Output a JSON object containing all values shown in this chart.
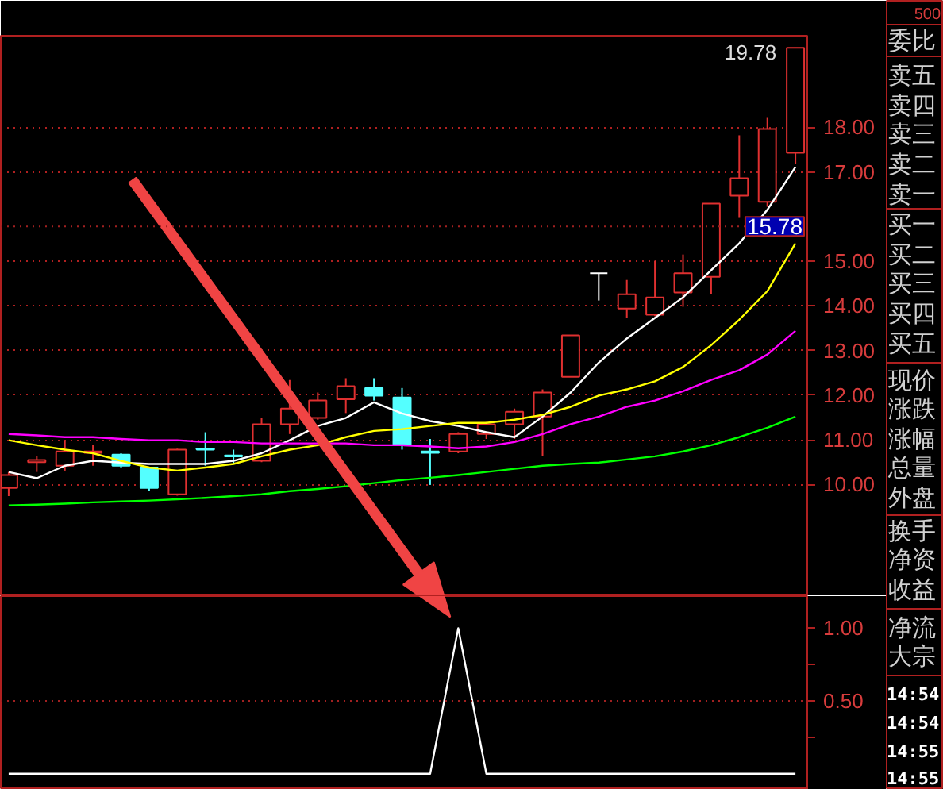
{
  "chart_data": [
    {
      "type": "candlestick",
      "categories": [
        null,
        null,
        null,
        null,
        null,
        null,
        null,
        null,
        null,
        null,
        null,
        null,
        null,
        null,
        null,
        null,
        null,
        null,
        null,
        null,
        null,
        null,
        null,
        null,
        null,
        null,
        null,
        null,
        null
      ],
      "ohlc": [
        [
          9.92,
          10.28,
          9.74,
          10.21
        ],
        [
          10.5,
          10.63,
          10.28,
          10.55
        ],
        [
          10.42,
          10.99,
          10.31,
          10.74
        ],
        [
          10.71,
          10.88,
          10.42,
          10.74
        ],
        [
          10.67,
          10.7,
          10.38,
          10.42
        ],
        [
          10.38,
          10.4,
          9.85,
          9.92
        ],
        [
          9.78,
          10.8,
          9.75,
          10.78
        ],
        [
          10.8,
          11.17,
          10.42,
          10.78
        ],
        [
          10.65,
          10.78,
          10.46,
          10.63
        ],
        [
          10.53,
          11.49,
          10.5,
          11.35
        ],
        [
          11.35,
          12.34,
          11.13,
          11.7
        ],
        [
          11.49,
          12.06,
          11.45,
          11.88
        ],
        [
          11.91,
          12.38,
          11.6,
          12.2
        ],
        [
          12.16,
          12.38,
          11.88,
          11.99
        ],
        [
          11.95,
          12.16,
          10.78,
          10.88
        ],
        [
          10.74,
          11.02,
          9.99,
          10.71
        ],
        [
          10.74,
          11.17,
          10.7,
          11.13
        ],
        [
          11.13,
          11.4,
          11.02,
          11.35
        ],
        [
          11.35,
          11.7,
          11.02,
          11.63
        ],
        [
          11.52,
          12.13,
          10.63,
          12.06
        ],
        [
          12.41,
          13.34,
          12.41,
          13.34
        ],
        [
          14.73,
          14.73,
          14.12,
          14.73
        ],
        [
          13.94,
          14.58,
          13.73,
          14.26
        ],
        [
          13.8,
          15.01,
          13.77,
          14.19
        ],
        [
          14.3,
          15.15,
          13.98,
          14.73
        ],
        [
          14.65,
          16.29,
          14.26,
          16.29
        ],
        [
          16.47,
          17.82,
          15.97,
          16.86
        ],
        [
          16.33,
          18.21,
          16.22,
          17.96
        ],
        [
          17.43,
          19.78,
          17.18,
          19.78
        ]
      ],
      "colors": [
        "#e03030",
        "#e03030",
        "#e03030",
        "#e03030",
        "#54ffff",
        "#54ffff",
        "#e03030",
        "#54ffff",
        "#54ffff",
        "#e03030",
        "#e03030",
        "#e03030",
        "#e03030",
        "#54ffff",
        "#54ffff",
        "#54ffff",
        "#e03030",
        "#e03030",
        "#e03030",
        "#e03030",
        "#e03030",
        "#ffffff",
        "#e03030",
        "#e03030",
        "#e03030",
        "#e03030",
        "#e03030",
        "#e03030",
        "#e03030"
      ],
      "series": [
        {
          "type": "line",
          "color": "#ffffff",
          "values": [
            10.28,
            10.14,
            10.42,
            10.53,
            10.49,
            10.46,
            10.46,
            10.46,
            10.53,
            10.7,
            10.99,
            11.31,
            11.49,
            11.84,
            11.59,
            11.42,
            11.31,
            11.17,
            11.06,
            11.52,
            12.06,
            12.73,
            13.27,
            13.73,
            14.19,
            14.8,
            15.4,
            16.15,
            17.11
          ]
        },
        {
          "type": "line",
          "color": "#ffff00",
          "values": [
            10.99,
            10.88,
            10.78,
            10.7,
            10.53,
            10.38,
            10.31,
            10.38,
            10.46,
            10.63,
            10.78,
            10.88,
            11.06,
            11.2,
            11.24,
            11.31,
            11.38,
            11.38,
            11.45,
            11.56,
            11.74,
            11.99,
            12.13,
            12.31,
            12.63,
            13.12,
            13.69,
            14.33,
            15.4
          ]
        },
        {
          "type": "line",
          "color": "#ff00ff",
          "values": [
            11.13,
            11.1,
            11.06,
            11.06,
            11.02,
            10.99,
            10.99,
            10.95,
            10.95,
            10.92,
            10.92,
            10.92,
            10.92,
            10.88,
            10.88,
            10.85,
            10.81,
            10.85,
            10.95,
            11.13,
            11.35,
            11.52,
            11.74,
            11.88,
            12.09,
            12.34,
            12.56,
            12.91,
            13.44
          ]
        },
        {
          "type": "line",
          "color": "#00ff00",
          "values": [
            9.53,
            9.55,
            9.57,
            9.6,
            9.62,
            9.64,
            9.67,
            9.7,
            9.74,
            9.78,
            9.85,
            9.9,
            9.96,
            10.03,
            10.1,
            10.15,
            10.21,
            10.28,
            10.35,
            10.42,
            10.46,
            10.49,
            10.56,
            10.63,
            10.74,
            10.88,
            11.06,
            11.27,
            11.52
          ]
        }
      ],
      "ylim": [
        7.5,
        20.05
      ],
      "yticks": [
        {
          "value": 10,
          "label": "10.00"
        },
        {
          "value": 11,
          "label": "11.00"
        },
        {
          "value": 12,
          "label": "12.00"
        },
        {
          "value": 13,
          "label": "13.00"
        },
        {
          "value": 14,
          "label": "14.00"
        },
        {
          "value": 15,
          "label": "15.00"
        },
        {
          "value": 17,
          "label": "17.00"
        },
        {
          "value": 18,
          "label": "18.00"
        }
      ],
      "grid": "y",
      "tick_labels": "y",
      "ref_lines": [
        {
          "axis": "y",
          "value": 15.78,
          "label": "15.78",
          "color": "#a02020",
          "line_style": "dotted"
        }
      ],
      "annotations": [
        "19.78"
      ]
    },
    {
      "type": "line",
      "categories": [
        null,
        null,
        null,
        null,
        null,
        null,
        null,
        null,
        null,
        null,
        null,
        null,
        null,
        null,
        null,
        null,
        null,
        null,
        null,
        null,
        null,
        null,
        null,
        null,
        null,
        null,
        null,
        null,
        null
      ],
      "color": "#ffffff",
      "values": [
        0,
        0,
        0,
        0,
        0,
        0,
        0,
        0,
        0,
        0,
        0,
        0,
        0,
        0,
        0,
        0,
        1,
        0,
        0,
        0,
        0,
        0,
        0,
        0,
        0,
        0,
        0,
        0,
        0
      ],
      "ylim": [
        -0.11,
        1.22
      ],
      "yticks": [
        {
          "value": 0.25,
          "label": null
        },
        {
          "value": 0.5,
          "label": "0.50"
        },
        {
          "value": 0.75,
          "label": null
        },
        {
          "value": 1,
          "label": "1.00"
        }
      ],
      "tick_labels": "y",
      "ref_lines": [
        {
          "axis": "y",
          "value": 0.5,
          "color": "#a02020",
          "line_style": "dotted"
        }
      ]
    },
    {
      "type": "other",
      "annotations": [
        "500",
        "委比",
        "卖五",
        "卖四",
        "卖三",
        "卖二",
        "卖一",
        "买一",
        "买二",
        "买三",
        "买四",
        "买五",
        "现价",
        "涨跌",
        "涨幅",
        "总量",
        "外盘",
        "换手",
        "净资",
        "收益",
        "净流",
        "大宗",
        "14:54",
        "14:54",
        "14:55",
        "14:55"
      ]
    }
  ]
}
